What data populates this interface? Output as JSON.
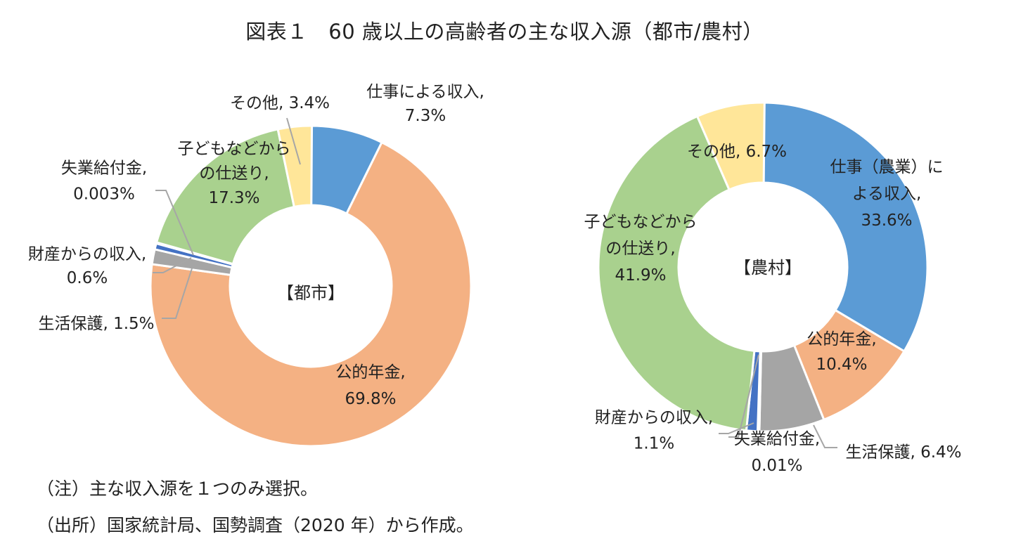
{
  "title": "図表１　60 歳以上の高齢者の主な収入源（都市/農村）",
  "notes": {
    "note1": "（注）主な収入源を１つのみ選択。",
    "note2": "（出所）国家統計局、国勢調査（2020 年）から作成。"
  },
  "chart_data": [
    {
      "type": "pie",
      "variant": "donut",
      "center_label": "【都市】",
      "slices": [
        {
          "name": "仕事による収入",
          "value": 7.3,
          "label": [
            "仕事による収入,",
            "7.3%"
          ],
          "color": "#5b9bd5"
        },
        {
          "name": "公的年金",
          "value": 69.8,
          "label": [
            "公的年金,",
            "69.8%"
          ],
          "color": "#f4b183"
        },
        {
          "name": "生活保護",
          "value": 1.5,
          "label": [
            "生活保護, 1.5%"
          ],
          "color": "#a5a5a5"
        },
        {
          "name": "財産からの収入",
          "value": 0.6,
          "label": [
            "財産からの収入,",
            "0.6%"
          ],
          "color": "#4472c4"
        },
        {
          "name": "失業給付金",
          "value": 0.003,
          "label": [
            "失業給付金,",
            "0.003%"
          ],
          "color": "#7f7f7f"
        },
        {
          "name": "子どもなどからの仕送り",
          "value": 17.3,
          "label": [
            "子どもなどから",
            "の仕送り,",
            "17.3%"
          ],
          "color": "#a9d18e"
        },
        {
          "name": "その他",
          "value": 3.4,
          "label": [
            "その他, 3.4%"
          ],
          "color": "#ffe699"
        }
      ]
    },
    {
      "type": "pie",
      "variant": "donut",
      "center_label": "【農村】",
      "slices": [
        {
          "name": "仕事（農業）による収入",
          "value": 33.6,
          "label": [
            "仕事（農業）に",
            "よる収入,",
            "33.6%"
          ],
          "color": "#5b9bd5"
        },
        {
          "name": "公的年金",
          "value": 10.4,
          "label": [
            "公的年金,",
            "10.4%"
          ],
          "color": "#f4b183"
        },
        {
          "name": "生活保護",
          "value": 6.4,
          "label": [
            "生活保護, 6.4%"
          ],
          "color": "#a5a5a5"
        },
        {
          "name": "失業給付金",
          "value": 0.01,
          "label": [
            "失業給付金,",
            "0.01%"
          ],
          "color": "#7f7f7f"
        },
        {
          "name": "財産からの収入",
          "value": 1.1,
          "label": [
            "財産からの収入,",
            "1.1%"
          ],
          "color": "#4472c4"
        },
        {
          "name": "子どもなどからの仕送り",
          "value": 41.9,
          "label": [
            "子どもなどから",
            "の仕送り,",
            "41.9%"
          ],
          "color": "#a9d18e"
        },
        {
          "name": "その他",
          "value": 6.7,
          "label": [
            "その他, 6.7%"
          ],
          "color": "#ffe699"
        }
      ]
    }
  ]
}
